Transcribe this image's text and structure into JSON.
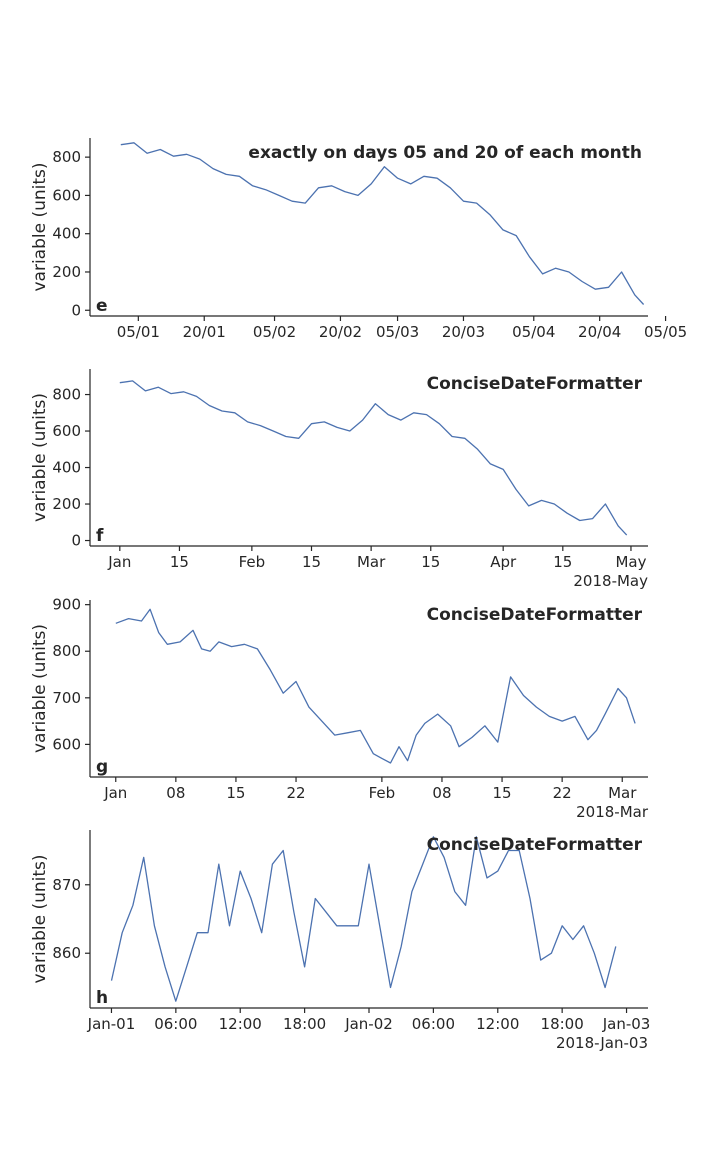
{
  "colors": {
    "line": "#4c72b0",
    "axis": "#262626",
    "background": "#ffffff"
  },
  "chart_data": [
    {
      "type": "line",
      "panel_label": "e",
      "title": "exactly on days 05 and 20 of each month",
      "xlabel": "",
      "ylabel": "variable (units)",
      "offset_label": "",
      "xlim": [
        -7,
        120
      ],
      "ylim": [
        -30,
        900
      ],
      "xticks": [
        4,
        19,
        35,
        50,
        63,
        78,
        94,
        109,
        124
      ],
      "xtick_labels": [
        "05/01",
        "20/01",
        "05/02",
        "20/02",
        "05/03",
        "20/03",
        "05/04",
        "20/04",
        "05/05"
      ],
      "yticks": [
        0,
        200,
        400,
        600,
        800
      ],
      "ytick_labels": [
        "0",
        "200",
        "400",
        "600",
        "800"
      ],
      "x": [
        0,
        3,
        6,
        9,
        12,
        15,
        18,
        21,
        24,
        27,
        30,
        33,
        36,
        39,
        42,
        45,
        48,
        51,
        54,
        57,
        60,
        63,
        66,
        69,
        72,
        75,
        78,
        81,
        84,
        87,
        90,
        93,
        96,
        99,
        102,
        105,
        108,
        111,
        114,
        117,
        119
      ],
      "y": [
        865,
        875,
        820,
        840,
        805,
        815,
        790,
        740,
        710,
        700,
        650,
        630,
        600,
        570,
        560,
        640,
        650,
        620,
        600,
        660,
        750,
        690,
        660,
        700,
        690,
        640,
        570,
        560,
        500,
        420,
        390,
        280,
        190,
        220,
        200,
        150,
        110,
        120,
        200,
        80,
        30
      ],
      "grid": false
    },
    {
      "type": "line",
      "panel_label": "f",
      "title": "ConciseDateFormatter",
      "xlabel": "",
      "ylabel": "variable (units)",
      "offset_label": "2018-May",
      "xlim": [
        -7,
        124
      ],
      "ylim": [
        -30,
        940
      ],
      "xticks": [
        0,
        14,
        31,
        45,
        59,
        73,
        90,
        104,
        120
      ],
      "xtick_labels": [
        "Jan",
        "15",
        "Feb",
        "15",
        "Mar",
        "15",
        "Apr",
        "15",
        "May"
      ],
      "yticks": [
        0,
        200,
        400,
        600,
        800
      ],
      "ytick_labels": [
        "0",
        "200",
        "400",
        "600",
        "800"
      ],
      "x": [
        0,
        3,
        6,
        9,
        12,
        15,
        18,
        21,
        24,
        27,
        30,
        33,
        36,
        39,
        42,
        45,
        48,
        51,
        54,
        57,
        60,
        63,
        66,
        69,
        72,
        75,
        78,
        81,
        84,
        87,
        90,
        93,
        96,
        99,
        102,
        105,
        108,
        111,
        114,
        117,
        119
      ],
      "y": [
        865,
        875,
        820,
        840,
        805,
        815,
        790,
        740,
        710,
        700,
        650,
        630,
        600,
        570,
        560,
        640,
        650,
        620,
        600,
        660,
        750,
        690,
        660,
        700,
        690,
        640,
        570,
        560,
        500,
        420,
        390,
        280,
        190,
        220,
        200,
        150,
        110,
        120,
        200,
        80,
        30
      ],
      "grid": false
    },
    {
      "type": "line",
      "panel_label": "g",
      "title": "ConciseDateFormatter",
      "xlabel": "",
      "ylabel": "variable (units)",
      "offset_label": "2018-Mar",
      "xlim": [
        -3,
        62
      ],
      "ylim": [
        530,
        910
      ],
      "xticks": [
        0,
        7,
        14,
        21,
        31,
        38,
        45,
        52,
        59
      ],
      "xtick_labels": [
        "Jan",
        "08",
        "15",
        "22",
        "Feb",
        "08",
        "15",
        "22",
        "Mar"
      ],
      "yticks": [
        600,
        700,
        800,
        900
      ],
      "ytick_labels": [
        "600",
        "700",
        "800",
        "900"
      ],
      "x": [
        0,
        1.5,
        3,
        4,
        5,
        6,
        7.5,
        9,
        10,
        11,
        12,
        13.5,
        15,
        16.5,
        18,
        19.5,
        21,
        22.5,
        24,
        25.5,
        27,
        28.5,
        30,
        31,
        32,
        33,
        34,
        35,
        36,
        37.5,
        39,
        40,
        41.5,
        43,
        44.5,
        46,
        47.5,
        49,
        50.5,
        52,
        53.5,
        55,
        56,
        57,
        58.5,
        59.5,
        60.5
      ],
      "y": [
        860,
        870,
        865,
        890,
        840,
        815,
        820,
        845,
        805,
        800,
        820,
        810,
        815,
        805,
        760,
        710,
        735,
        680,
        650,
        620,
        625,
        630,
        580,
        570,
        560,
        595,
        565,
        620,
        645,
        665,
        640,
        595,
        615,
        640,
        605,
        745,
        705,
        680,
        660,
        650,
        660,
        610,
        630,
        665,
        720,
        700,
        645
      ],
      "grid": false
    },
    {
      "type": "line",
      "panel_label": "h",
      "title": "ConciseDateFormatter",
      "xlabel": "",
      "ylabel": "variable (units)",
      "offset_label": "2018-Jan-03",
      "xlim": [
        -2,
        50
      ],
      "ylim": [
        852,
        878
      ],
      "xticks": [
        0,
        6,
        12,
        18,
        24,
        30,
        36,
        42,
        48
      ],
      "xtick_labels": [
        "Jan-01",
        "06:00",
        "12:00",
        "18:00",
        "Jan-02",
        "06:00",
        "12:00",
        "18:00",
        "Jan-03"
      ],
      "yticks": [
        860,
        870
      ],
      "ytick_labels": [
        "860",
        "870"
      ],
      "x": [
        0,
        1,
        2,
        3,
        4,
        5,
        6,
        7,
        8,
        9,
        10,
        11,
        12,
        13,
        14,
        15,
        16,
        17,
        18,
        19,
        20,
        21,
        22,
        23,
        24,
        25,
        26,
        27,
        28,
        29,
        30,
        31,
        32,
        33,
        34,
        35,
        36,
        37,
        38,
        39,
        40,
        41,
        42,
        43,
        44,
        45,
        46,
        47
      ],
      "y": [
        856,
        863,
        867,
        874,
        864,
        858,
        853,
        858,
        863,
        863,
        873,
        864,
        872,
        868,
        863,
        873,
        875,
        866,
        858,
        868,
        866,
        864,
        864,
        864,
        873,
        864,
        855,
        861,
        869,
        873,
        877,
        874,
        869,
        867,
        877,
        871,
        872,
        875,
        875,
        868,
        859,
        860,
        864,
        862,
        864,
        860,
        855,
        861
      ],
      "grid": false
    }
  ]
}
